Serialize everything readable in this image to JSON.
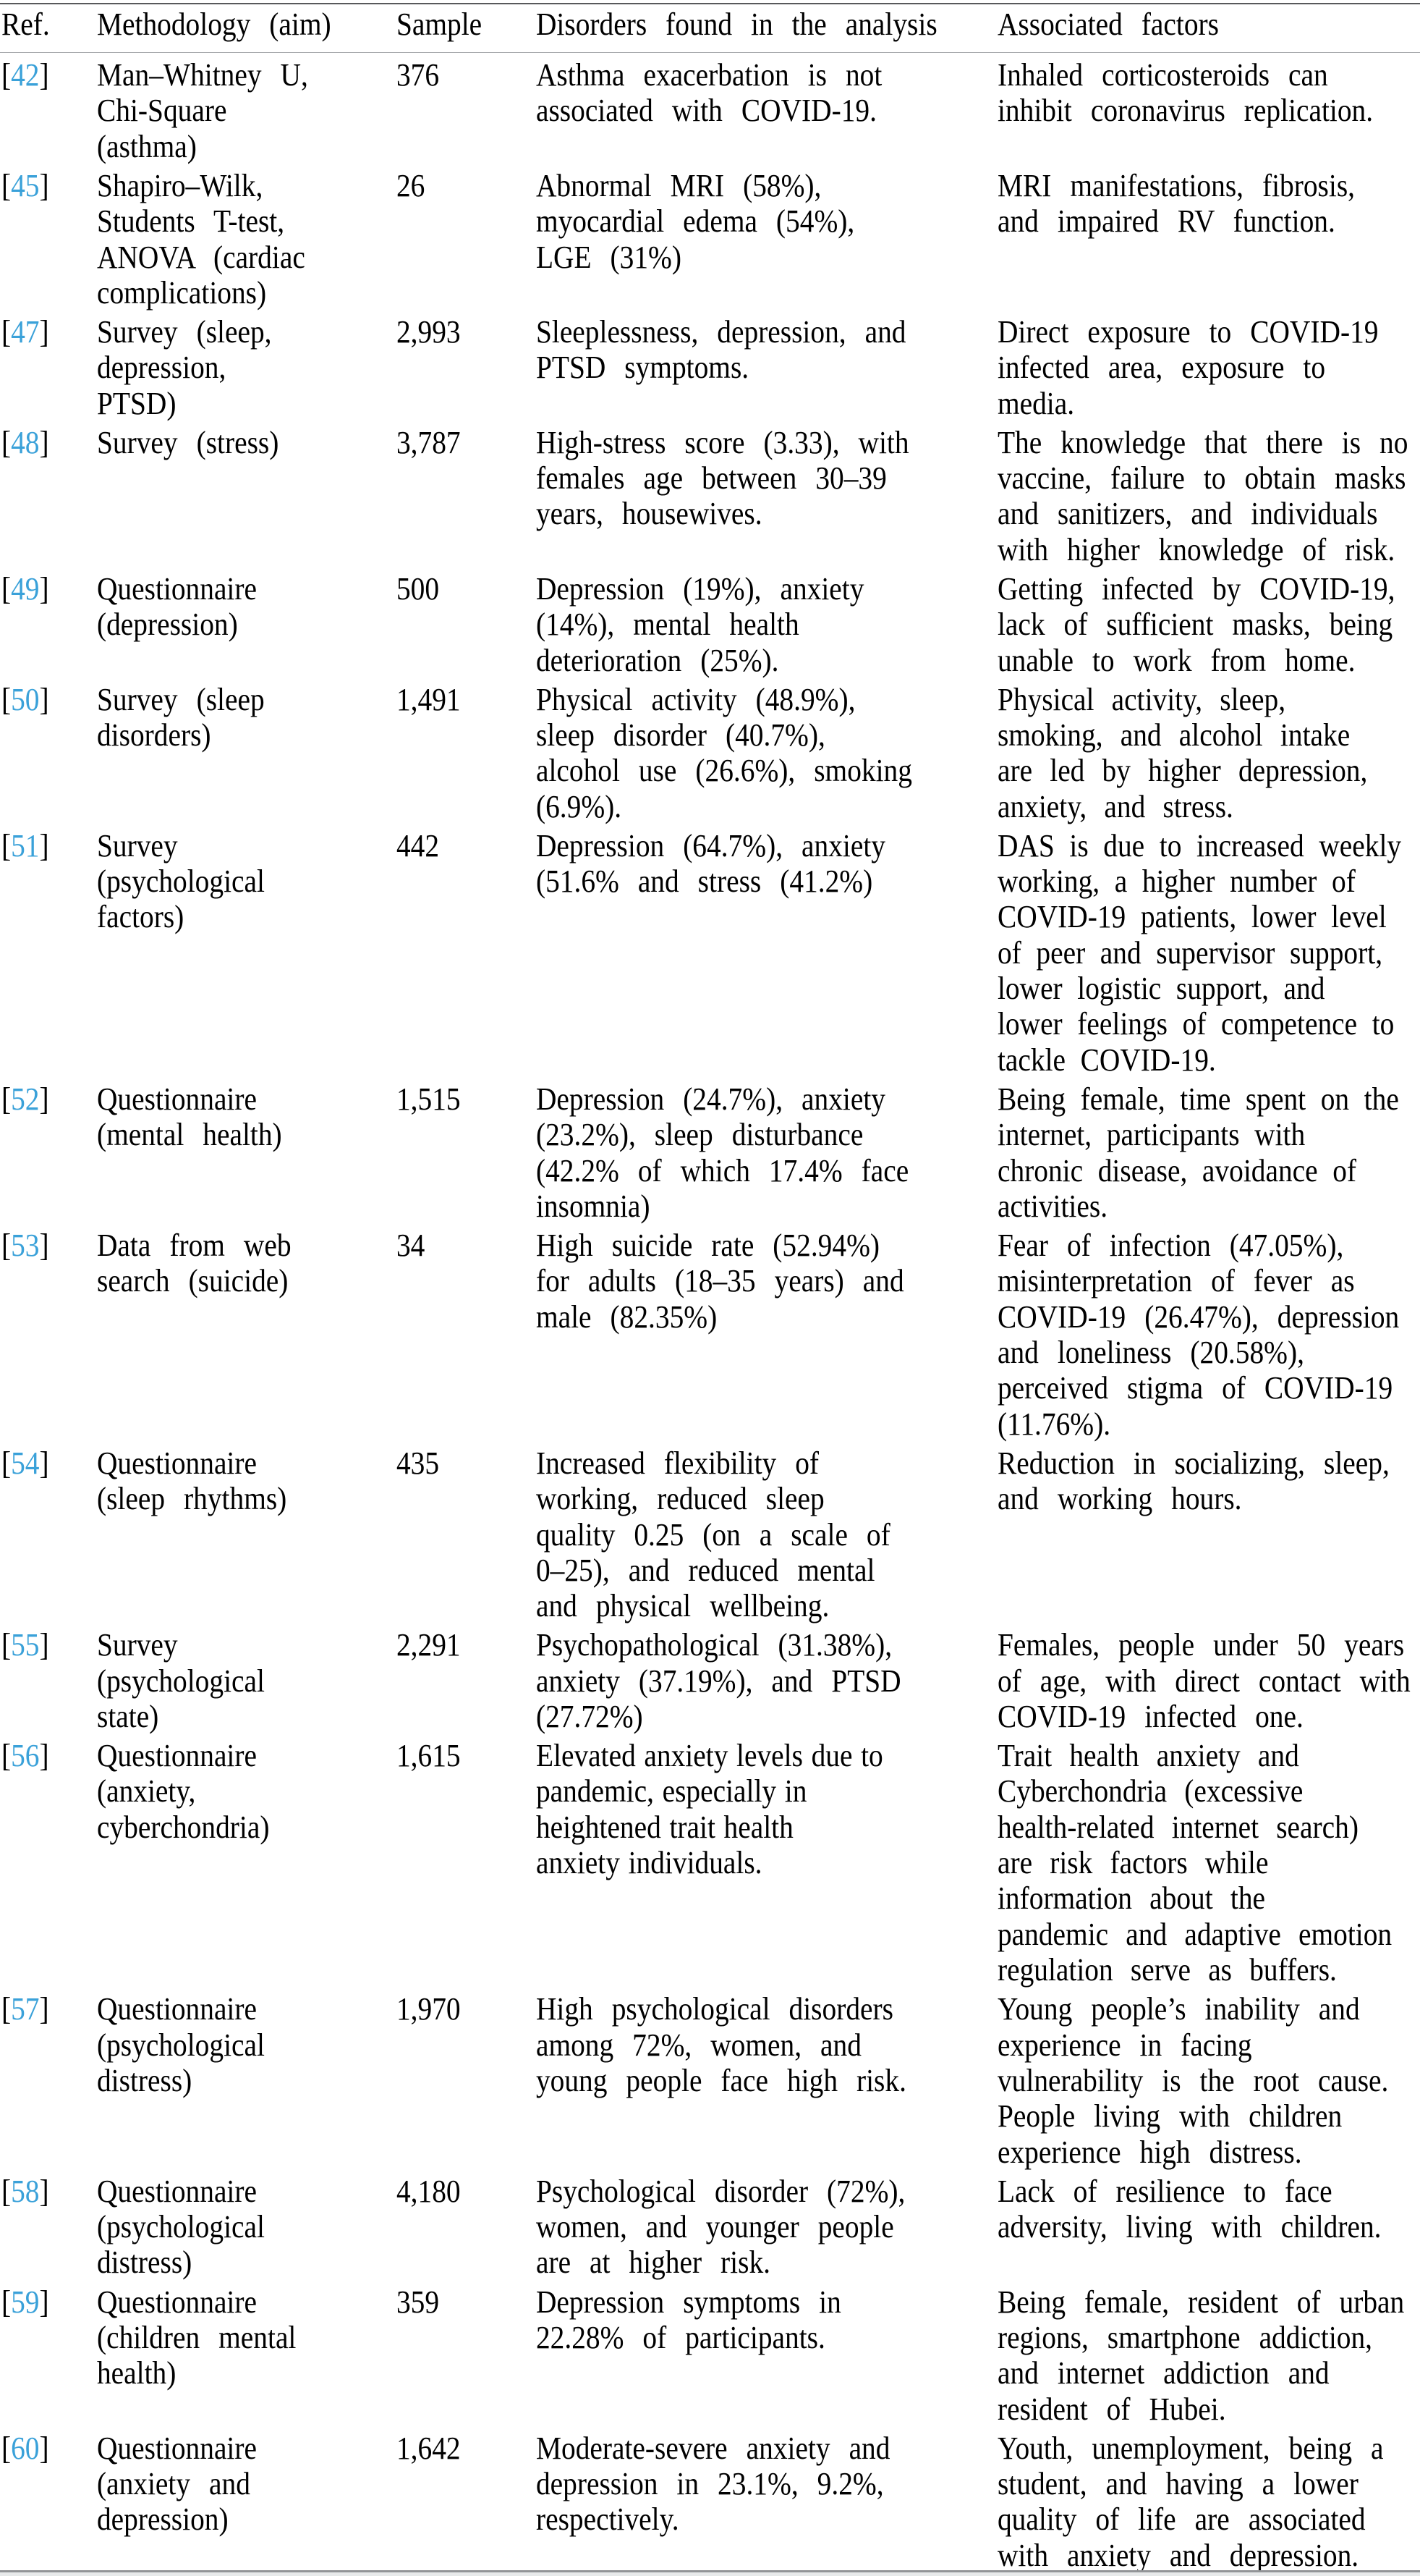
{
  "table": {
    "columns": [
      {
        "key": "ref",
        "label": "Ref."
      },
      {
        "key": "methodology",
        "label": "Methodology (aim)"
      },
      {
        "key": "sample",
        "label": "Sample"
      },
      {
        "key": "disorders",
        "label": "Disorders found in the analysis"
      },
      {
        "key": "factors",
        "label": "Associated factors"
      }
    ],
    "rows": [
      {
        "ref": "42",
        "methodology": "Man–Whitney U, Chi-Square (asthma)",
        "sample": "376",
        "disorders": "Asthma exacerbation is not associated with COVID-19.",
        "factors": "Inhaled corticosteroids can inhibit coronavirus replication."
      },
      {
        "ref": "45",
        "methodology": "Shapiro–Wilk, Students T-test, ANOVA (cardiac complications)",
        "sample": "26",
        "disorders": "Abnormal MRI (58%), myocardial edema (54%), LGE (31%)",
        "factors": "MRI manifestations, fibrosis, and impaired RV function."
      },
      {
        "ref": "47",
        "methodology": "Survey (sleep, depression, PTSD)",
        "sample": "2,993",
        "disorders": "Sleeplessness, depression, and PTSD symptoms.",
        "factors": "Direct exposure to COVID-19 infected area, exposure to media."
      },
      {
        "ref": "48",
        "methodology": "Survey (stress)",
        "sample": "3,787",
        "disorders": "High-stress score (3.33), with females age between 30–39 years, housewives.",
        "factors": "The knowledge that there is no vaccine, failure to obtain masks and sanitizers, and individuals with higher knowledge of risk."
      },
      {
        "ref": "49",
        "methodology": "Questionnaire (depression)",
        "sample": "500",
        "disorders": "Depression (19%), anxiety (14%), mental health deterioration (25%).",
        "factors": "Getting infected by COVID-19, lack of sufficient masks, being unable to work from home."
      },
      {
        "ref": "50",
        "methodology": "Survey (sleep disorders)",
        "sample": "1,491",
        "disorders": "Physical activity (48.9%), sleep disorder (40.7%), alcohol use (26.6%), smoking (6.9%).",
        "factors": "Physical activity, sleep, smoking, and alcohol intake are led by higher depression, anxiety, and stress."
      },
      {
        "ref": "51",
        "methodology": "Survey (psychological factors)",
        "sample": "442",
        "disorders": "Depression (64.7%), anxiety (51.6% and stress (41.2%)",
        "factors": "DAS is due to increased weekly working, a higher number of COVID-19 patients, lower level of peer and supervisor support, lower logistic support, and lower feelings of competence to tackle COVID-19."
      },
      {
        "ref": "52",
        "methodology": "Questionnaire (mental health)",
        "sample": "1,515",
        "disorders": "Depression (24.7%), anxiety (23.2%), sleep disturbance (42.2% of which 17.4% face insomnia)",
        "factors": "Being female, time spent on the internet, participants with chronic disease, avoidance of activities."
      },
      {
        "ref": "53",
        "methodology": "Data from web search (suicide)",
        "sample": "34",
        "disorders": "High suicide rate (52.94%) for adults (18–35 years) and male (82.35%)",
        "factors": "Fear of infection (47.05%), misinterpretation of fever as COVID-19 (26.47%), depression and loneliness (20.58%), perceived stigma of COVID-19 (11.76%)."
      },
      {
        "ref": "54",
        "methodology": "Questionnaire (sleep rhythms)",
        "sample": "435",
        "disorders": "Increased flexibility of working, reduced sleep quality 0.25 (on a scale of 0–25), and reduced mental and physical wellbeing.",
        "factors": "Reduction in socializing, sleep, and working hours."
      },
      {
        "ref": "55",
        "methodology": "Survey (psychological state)",
        "sample": "2,291",
        "disorders": "Psychopathological (31.38%), anxiety (37.19%), and PTSD (27.72%)",
        "factors": "Females, people under 50 years of age, with direct contact with COVID-19 infected one."
      },
      {
        "ref": "56",
        "methodology": "Questionnaire (anxiety, cyberchondria)",
        "sample": "1,615",
        "disorders": "Elevated anxiety levels due to pandemic, especially in heightened trait health anxiety individuals.",
        "factors": "Trait health anxiety and Cyberchondria (excessive health-related internet search) are risk factors while information about the pandemic and adaptive emotion regulation serve as buffers."
      },
      {
        "ref": "57",
        "methodology": "Questionnaire (psychological distress)",
        "sample": "1,970",
        "disorders": "High psychological disorders among 72%, women, and young people face high risk.",
        "factors": "Young people’s inability and experience in facing vulnerability is the root cause. People living with children experience high distress."
      },
      {
        "ref": "58",
        "methodology": "Questionnaire (psychological distress)",
        "sample": "4,180",
        "disorders": "Psychological disorder (72%), women, and younger people are at higher risk.",
        "factors": "Lack of resilience to face adversity, living with children."
      },
      {
        "ref": "59",
        "methodology": "Questionnaire (children mental health)",
        "sample": "359",
        "disorders": "Depression symptoms in 22.28% of participants.",
        "factors": "Being female, resident of urban regions, smartphone addiction, and internet addiction and resident of Hubei."
      },
      {
        "ref": "60",
        "methodology": "Questionnaire (anxiety and depression)",
        "sample": "1,642",
        "disorders": "Moderate-severe anxiety and depression in 23.1%, 9.2%, respectively.",
        "factors": "Youth, unemployment, being a student, and having a lower quality of life are associated with anxiety and depression."
      }
    ]
  },
  "colors": {
    "reference_link": "#3aa1d9",
    "text": "#000000",
    "rule_top": "#58595b",
    "rule_header": "#a7a9ac",
    "rule_bottom": "#939598",
    "footer_band": "#e8eaeb"
  },
  "reference_bracket_open": "[",
  "reference_bracket_close": "]"
}
